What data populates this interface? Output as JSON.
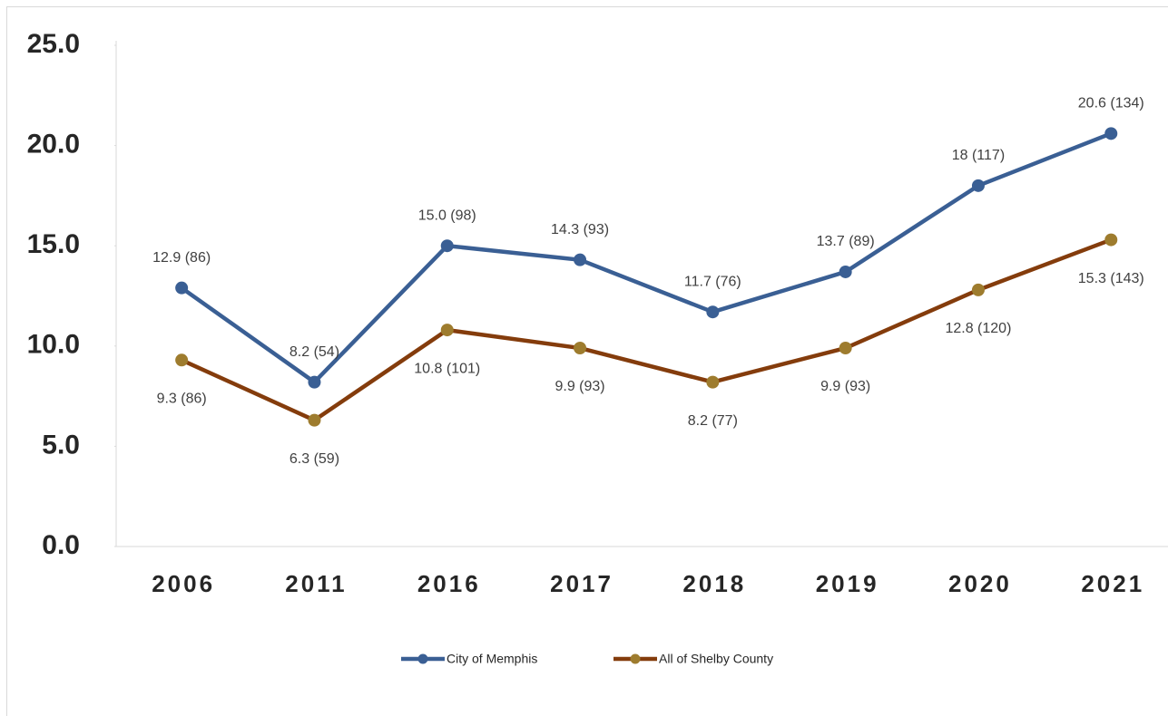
{
  "chart_data": {
    "type": "line",
    "categories": [
      "2006",
      "2011",
      "2016",
      "2017",
      "2018",
      "2019",
      "2020",
      "2021"
    ],
    "series": [
      {
        "name": "City of Memphis",
        "color": "#3a5f94",
        "marker_color": "#3a5f94",
        "values": [
          12.9,
          8.2,
          15.0,
          14.3,
          11.7,
          13.7,
          18,
          20.6
        ],
        "value_labels": [
          "12.9 (86)",
          "8.2 (54)",
          "15.0 (98)",
          "14.3 (93)",
          "11.7 (76)",
          "13.7 (89)",
          "18 (117)",
          "20.6 (134)"
        ]
      },
      {
        "name": "All of Shelby County",
        "color": "#843c0c",
        "marker_color": "#9e7c2e",
        "values": [
          9.3,
          6.3,
          10.8,
          9.9,
          8.2,
          9.9,
          12.8,
          15.3
        ],
        "value_labels": [
          "9.3 (86)",
          "6.3 (59)",
          "10.8 (101)",
          "9.9 (93)",
          "8.2 (77)",
          "9.9 (93)",
          "12.8 (120)",
          "15.3 (143)"
        ]
      }
    ],
    "ylim": [
      0,
      25
    ],
    "yticks": [
      {
        "value": 0,
        "label": "0.0"
      },
      {
        "value": 5,
        "label": "5.0"
      },
      {
        "value": 10,
        "label": "10.0"
      },
      {
        "value": 15,
        "label": "15.0"
      },
      {
        "value": 20,
        "label": "20.0"
      },
      {
        "value": 25,
        "label": "25.0"
      }
    ],
    "legend": "bottom"
  }
}
